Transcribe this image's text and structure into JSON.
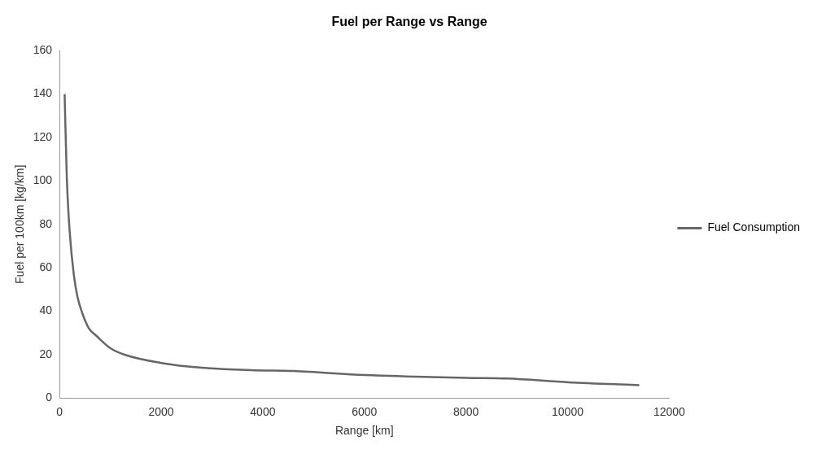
{
  "chart_data": {
    "type": "line",
    "title": "Fuel per Range vs Range",
    "xlabel": "Range [km]",
    "ylabel": "Fuel per 100km [kg/km]",
    "xlim": [
      0,
      12000
    ],
    "xticks": [
      0,
      2000,
      4000,
      6000,
      8000,
      10000,
      12000
    ],
    "ylim": [
      0,
      160
    ],
    "yticks": [
      0,
      20,
      40,
      60,
      80,
      100,
      120,
      140,
      160
    ],
    "grid": false,
    "legend": "right",
    "marker": "none",
    "line_style": "solid",
    "series": [
      {
        "name": "Fuel Consumption",
        "color": "#666666",
        "x": [
          100,
          143,
          200,
          280,
          350,
          450,
          580,
          725,
          1000,
          1280,
          2000,
          2800,
          3765,
          4600,
          6010,
          7000,
          8010,
          8800,
          10020,
          11410
        ],
        "values": [
          140,
          101.6,
          76.6,
          57,
          47,
          39,
          32,
          28.7,
          23,
          20,
          16.2,
          14,
          12.9,
          12.5,
          10.6,
          9.9,
          9.3,
          9,
          7.3,
          6
        ]
      }
    ]
  }
}
